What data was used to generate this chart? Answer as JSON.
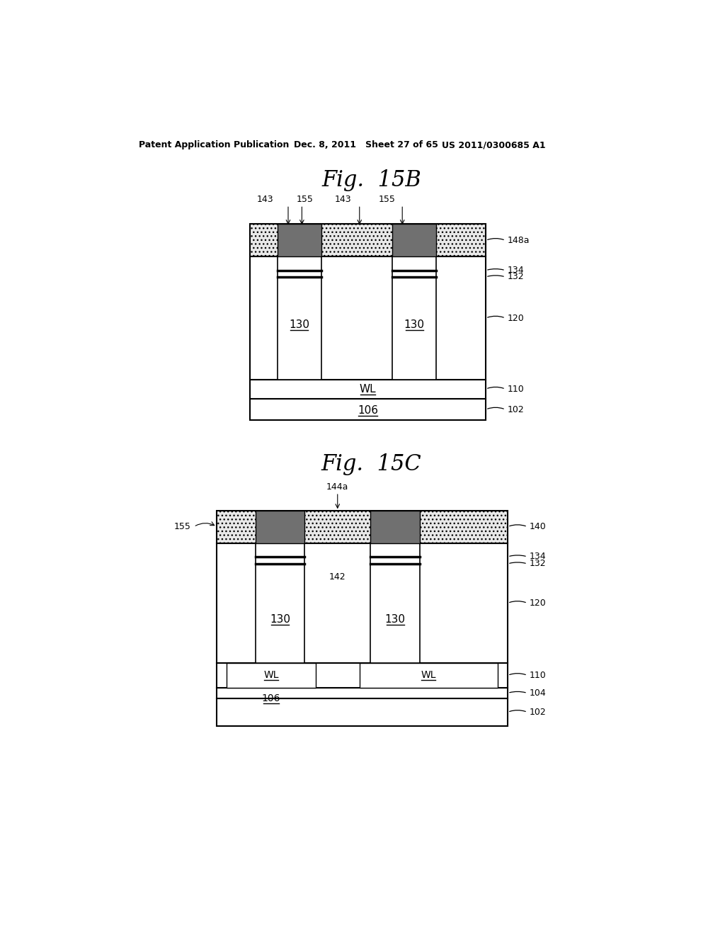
{
  "bg_color": "#ffffff",
  "header_left": "Patent Application Publication",
  "header_mid": "Dec. 8, 2011   Sheet 27 of 65",
  "header_right": "US 2011/0300685 A1",
  "fig_B_title": "Fig.  15B",
  "fig_C_title": "Fig.  15C",
  "dotted_fc": "#e8e8e8",
  "dark_fc": "#707070",
  "white_fc": "#ffffff",
  "black": "#000000"
}
